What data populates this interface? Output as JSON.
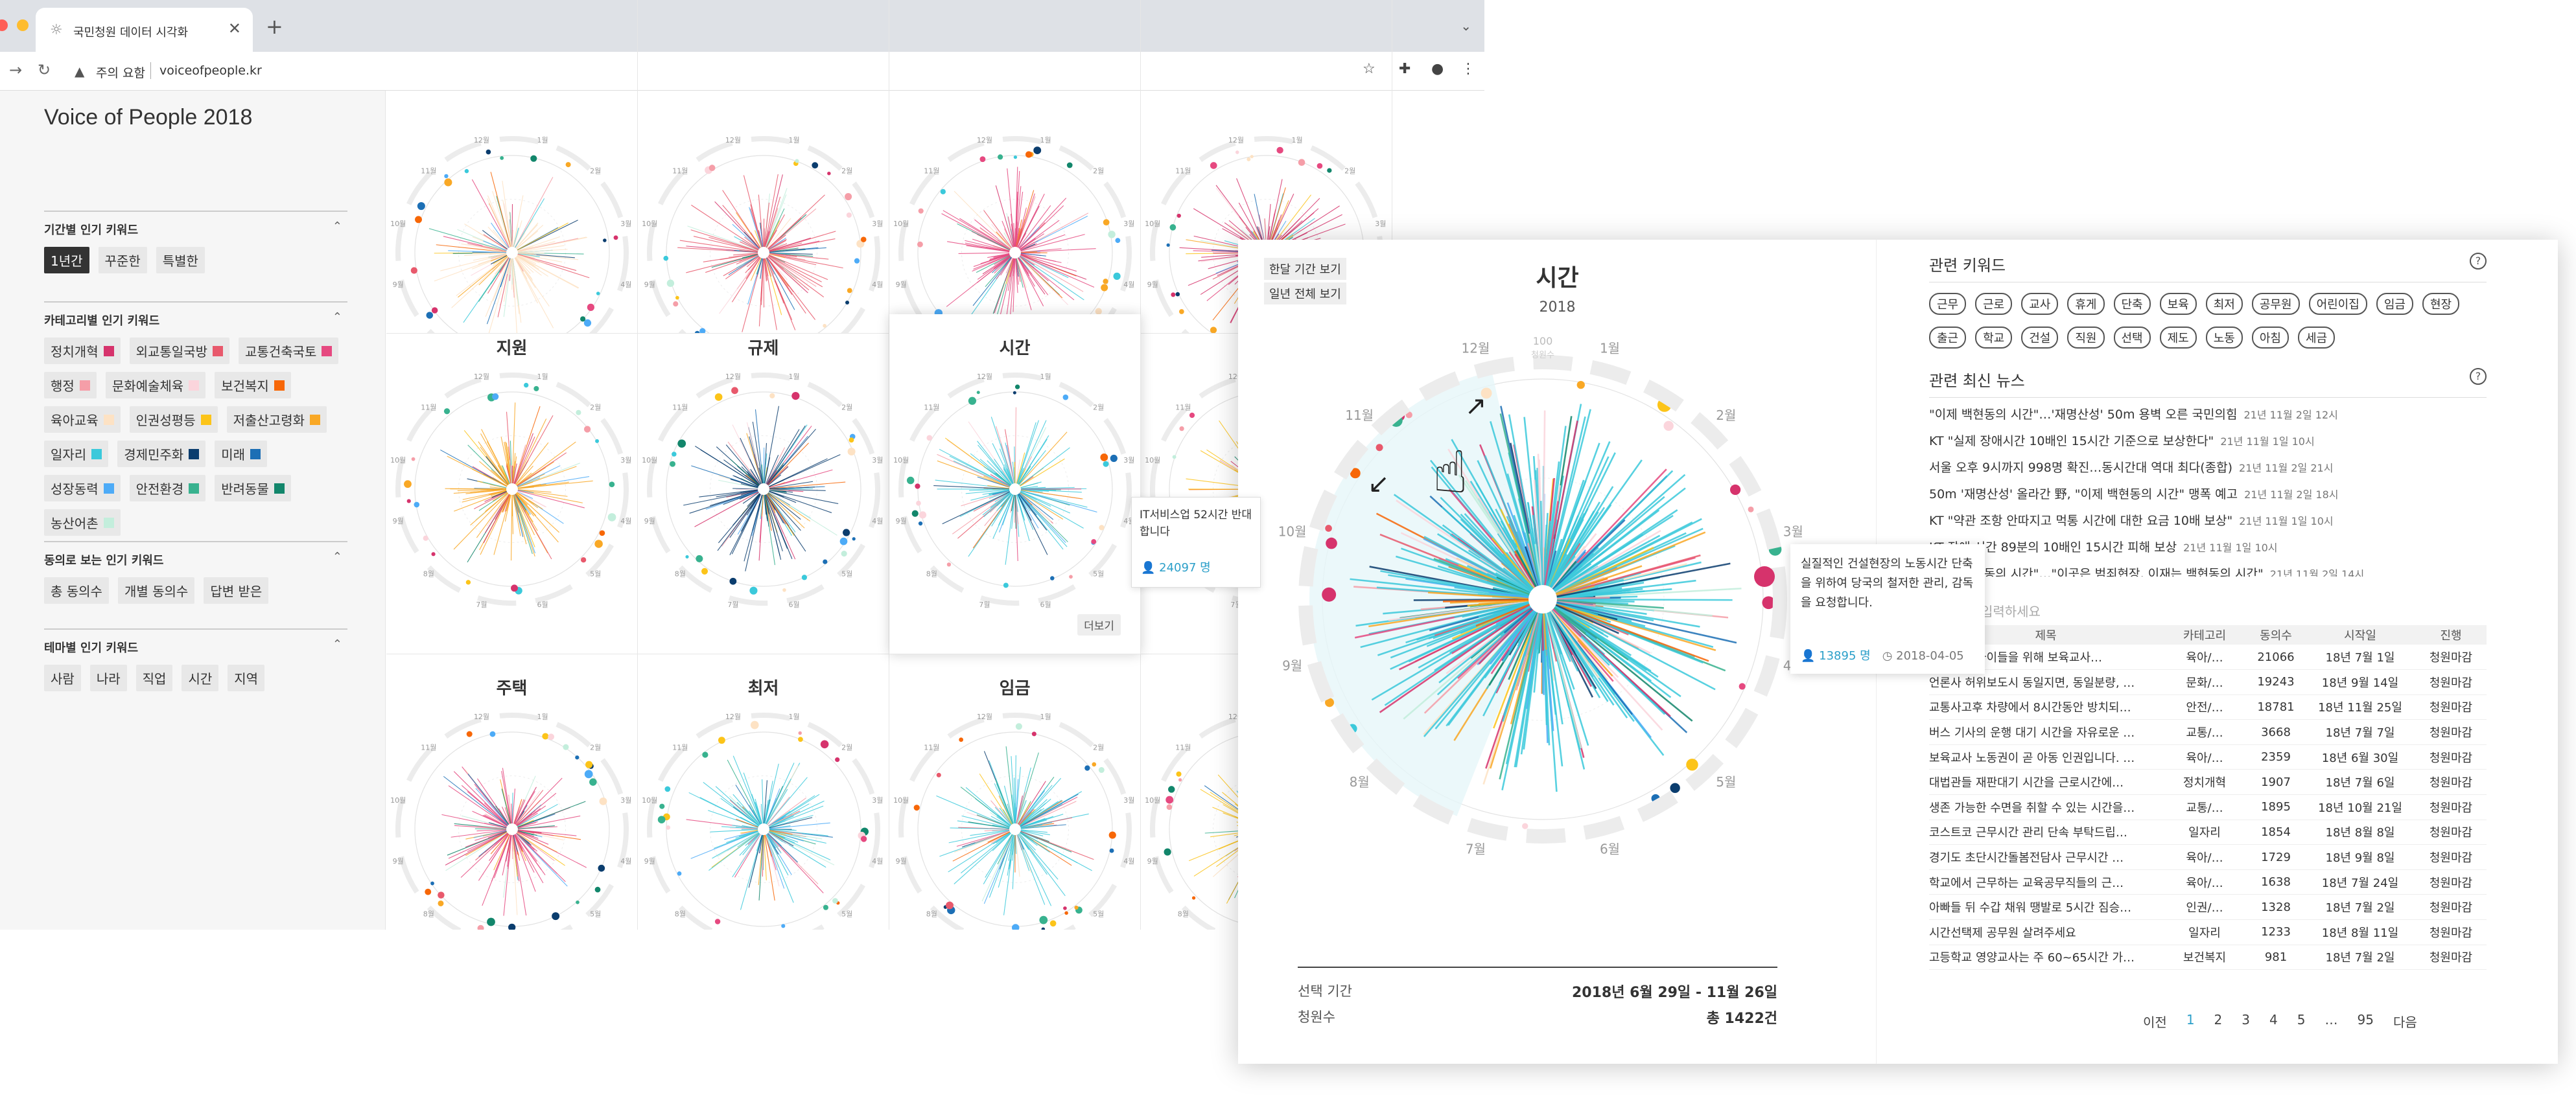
{
  "browser": {
    "tab_title": "국민청원 데이터 시각화",
    "tab_favicon": "☼",
    "tab_close": "✕",
    "tab_new": "+",
    "tab_menu": "⌄",
    "address_warning": "주의 요함",
    "address_url": "voiceofpeople.kr",
    "colors": {
      "tabbar": "#dee1e6",
      "close": "#ff5f57",
      "minimize": "#febc2e",
      "zoom": "#28c840"
    }
  },
  "sidebar": {
    "title": "Voice of People 2018",
    "sections": [
      {
        "title": "기간별 인기 키워드",
        "chips": [
          {
            "label": "1년간",
            "active": true
          },
          {
            "label": "꾸준한"
          },
          {
            "label": "특별한"
          }
        ]
      },
      {
        "title": "카테고리별 인기 키워드",
        "chips": [
          {
            "label": "정치개혁",
            "color": "#d6336c"
          },
          {
            "label": "외교통일국방",
            "color": "#e8596c"
          },
          {
            "label": "교통건축국토",
            "color": "#e64980"
          },
          {
            "label": "행정",
            "color": "#f59ea8"
          },
          {
            "label": "문화예술체육",
            "color": "#fbd5dc"
          },
          {
            "label": "보건복지",
            "color": "#f76707"
          },
          {
            "label": "육아교육",
            "color": "#fde2c4"
          },
          {
            "label": "인권성평등",
            "color": "#fcc419"
          },
          {
            "label": "저출산고령화",
            "color": "#f9a825"
          },
          {
            "label": "일자리",
            "color": "#3bc9db"
          },
          {
            "label": "경제민주화",
            "color": "#0b3d6e"
          },
          {
            "label": "미래",
            "color": "#1c6fb5"
          },
          {
            "label": "성장동력",
            "color": "#4dabf7"
          },
          {
            "label": "안전환경",
            "color": "#38b28f"
          },
          {
            "label": "반려동물",
            "color": "#12866b"
          },
          {
            "label": "농산어촌",
            "color": "#c3eedc"
          }
        ]
      },
      {
        "title": "동의로 보는 인기 키워드",
        "chips": [
          {
            "label": "총 동의수"
          },
          {
            "label": "개별 동의수"
          },
          {
            "label": "답변 받은"
          }
        ]
      },
      {
        "title": "테마별 인기 키워드",
        "chips": [
          {
            "label": "사람"
          },
          {
            "label": "나라"
          },
          {
            "label": "직업"
          },
          {
            "label": "시간"
          },
          {
            "label": "지역"
          }
        ]
      }
    ]
  },
  "grid": {
    "cells": [
      {
        "title": "",
        "color": "#fde2c4"
      },
      {
        "title": "",
        "color": "#e8596c"
      },
      {
        "title": "",
        "color": "#e64980"
      },
      {
        "title": "",
        "color": "#d6336c"
      },
      {
        "title": "지원",
        "color": "#f9a825"
      },
      {
        "title": "규제",
        "color": "#0b3d6e"
      },
      {
        "title": "시간",
        "color": "#3bc9db"
      },
      {
        "title": "",
        "color": "#fcc419"
      },
      {
        "title": "주택",
        "color": "#e64980"
      },
      {
        "title": "최저",
        "color": "#3bc9db"
      },
      {
        "title": "임금",
        "color": "#3bc9db"
      },
      {
        "title": "",
        "color": "#fcc419"
      }
    ],
    "month_labels": [
      "1월",
      "2월",
      "3월",
      "4월",
      "5월",
      "6월",
      "7월",
      "8월",
      "9월",
      "10월",
      "11월",
      "12월"
    ],
    "more_label": "더보기",
    "tooltip": {
      "text": "IT서비스업 52시간 반대합니다",
      "count": "24097 명"
    }
  },
  "detail": {
    "view_month": "한달 기간 보기",
    "view_year": "일년 전체 보기",
    "title": "시간",
    "year": "2018",
    "scale_label": "100",
    "scale_unit": "청원수",
    "months": [
      "1월",
      "2월",
      "3월",
      "4월",
      "5월",
      "6월",
      "7월",
      "8월",
      "9월",
      "10월",
      "11월",
      "12월"
    ],
    "tooltip": {
      "text": "실질적인 건설현장의 노동시간 단축을 위하여 당국의 철저한 관리, 감독을 요청합니다.",
      "count": "13895 명",
      "date": "2018-04-05"
    },
    "selection": {
      "period_label": "선택 기간",
      "period_value": "2018년 6월 29일 - 11월 26일",
      "count_label": "청원수",
      "count_value": "총 1422건"
    }
  },
  "related": {
    "keywords_title": "관련 키워드",
    "keywords": [
      "근무",
      "근로",
      "교사",
      "휴게",
      "단축",
      "보육",
      "최저",
      "공무원",
      "어린이집",
      "임금",
      "현장",
      "출근",
      "학교",
      "건설",
      "직원",
      "선택",
      "제도",
      "노동",
      "아침",
      "세금"
    ],
    "news_title": "관련 최신 뉴스",
    "news": [
      {
        "title": "\"이제 백현동의 시간\"…'재명산성' 50m 용벽 오른 국민의힘",
        "date": "21년 11월 2일 12시"
      },
      {
        "title": "KT \"실제 장애시간 10배인 15시간 기준으로 보상한다\"",
        "date": "21년 11월 1일 10시"
      },
      {
        "title": "서울 오후 9시까지 998명 확진…동시간대 역대 최다(종합)",
        "date": "21년 11월 2일 21시"
      },
      {
        "title": "50m '재명산성' 올라간 野, \"이제 백현동의 시간\" 맹폭 예고",
        "date": "21년 11월 2일 18시"
      },
      {
        "title": "KT \"약관 조항 안따지고 먹통 시간에 대한 요금 10배 보상\"",
        "date": "21년 11월 1일 10시"
      },
      {
        "title": "KT 장애 시간 89분의 10배인 15시간 피해 보상",
        "date": "21년 11월 1일 10시"
      },
      {
        "title": "\"이제 백현동의 시간\"…\"이곳은 범죄현장, 이재는 백현동의 시간\"",
        "date": "21년 11월 2일 14시"
      }
    ],
    "search_placeholder": "검색어를 입력하세요",
    "table": {
      "headers": [
        "제목",
        "카테고리",
        "동의수",
        "시작일",
        "진행"
      ],
      "rows": [
        [
          "어린이집 아이들을 위해 보육교사…",
          "육아/…",
          "21066",
          "18년 7월 1일",
          "청원마감"
        ],
        [
          "언론사 허위보도시 동일지면, 동일분량, …",
          "문화/…",
          "19243",
          "18년 9월 14일",
          "청원마감"
        ],
        [
          "교통사고후 차량에서 8시간동안 방치되…",
          "안전/…",
          "18781",
          "18년 11월 25일",
          "청원마감"
        ],
        [
          "버스 기사의 운행 대기 시간을 자유로운 …",
          "교통/…",
          "3668",
          "18년 7월 7일",
          "청원마감"
        ],
        [
          "보육교사 노동권이 곧 아동 인권입니다. …",
          "육아/…",
          "2359",
          "18년 6월 30일",
          "청원마감"
        ],
        [
          "대법관들 재판대기 시간을 근로시간에…",
          "정치개혁",
          "1907",
          "18년 7월 6일",
          "청원마감"
        ],
        [
          "생존 가능한 수면을 취할 수 있는 시간을…",
          "교통/…",
          "1895",
          "18년 10월 21일",
          "청원마감"
        ],
        [
          "코스트코 근무시간 관리 단속 부탁드립…",
          "일자리",
          "1854",
          "18년 8월 8일",
          "청원마감"
        ],
        [
          "경기도 초단시간돌봄전담사 근무시간 …",
          "육아/…",
          "1729",
          "18년 9월 8일",
          "청원마감"
        ],
        [
          "학교에서 근무하는 교육공무직들의 근…",
          "육아/…",
          "1638",
          "18년 7월 24일",
          "청원마감"
        ],
        [
          "아빠들 뒤 수갑 채워 땡발로 5시간 짐승…",
          "인권/…",
          "1328",
          "18년 7월 2일",
          "청원마감"
        ],
        [
          "시간선택제 공무원 살려주세요",
          "일자리",
          "1233",
          "18년 8월 11일",
          "청원마감"
        ],
        [
          "고등학교 영양교사는 주 60~65시간 가…",
          "보건복지",
          "981",
          "18년 7월 2일",
          "청원마감"
        ]
      ]
    },
    "pager": {
      "prev": "이전",
      "pages": [
        "1",
        "2",
        "3",
        "4",
        "5",
        "…",
        "95"
      ],
      "next": "다음"
    }
  },
  "palette": [
    "#d6336c",
    "#e8596c",
    "#e64980",
    "#f59ea8",
    "#fbd5dc",
    "#f76707",
    "#fde2c4",
    "#fcc419",
    "#f9a825",
    "#3bc9db",
    "#0b3d6e",
    "#1c6fb5",
    "#4dabf7",
    "#38b28f",
    "#12866b",
    "#c3eedc"
  ]
}
